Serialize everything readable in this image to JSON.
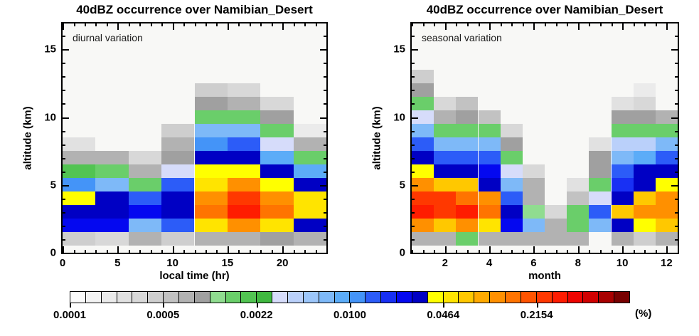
{
  "chart_data": {
    "type": "heatmap",
    "plot_background": "#f8f8f6",
    "palette": [
      "#fbfbfb",
      "#f3f3f3",
      "#ebebeb",
      "#e1e1e1",
      "#d8d8d8",
      "#cecece",
      "#c2c2c2",
      "#b2b2b2",
      "#a0a0a0",
      "#90dc90",
      "#6ace6a",
      "#52c452",
      "#40b840",
      "#d6dcfa",
      "#bad0fa",
      "#9cc6fa",
      "#7eb9f8",
      "#5cacf8",
      "#4494f8",
      "#2c5cf8",
      "#1830f4",
      "#0408f0",
      "#0000c4",
      "#ffff00",
      "#ffe400",
      "#ffc800",
      "#ffaa00",
      "#ff9000",
      "#ff7400",
      "#ff5400",
      "#ff3800",
      "#ff1c00",
      "#ee0400",
      "#d00000",
      "#a80000",
      "#780000"
    ],
    "plots": [
      {
        "title": "40dBZ occurrence over Namibian_Desert",
        "annotation": "diurnal variation",
        "xlabel": "local time (hr)",
        "ylabel": "altitude (km)",
        "x_range": [
          0,
          24
        ],
        "y_range": [
          0,
          16.9
        ],
        "x_major_ticks": [
          0,
          5,
          10,
          15,
          20
        ],
        "x_minor_step": 1,
        "y_major_ticks": [
          0,
          5,
          10,
          15
        ],
        "y_minor_step": 1,
        "col_edges": [
          0,
          3,
          6,
          9,
          12,
          15,
          18,
          21,
          24
        ],
        "row_center_start_km": 1,
        "row_height_km": 1,
        "grid_rows_bottom_up": [
          [
            5,
            4,
            7,
            5,
            7,
            7,
            8,
            7
          ],
          [
            21,
            21,
            16,
            19,
            24,
            27,
            24,
            22
          ],
          [
            22,
            22,
            21,
            22,
            28,
            31,
            28,
            24
          ],
          [
            23,
            22,
            19,
            22,
            27,
            30,
            27,
            24
          ],
          [
            18,
            16,
            10,
            19,
            24,
            27,
            23,
            22
          ],
          [
            11,
            10,
            7,
            13,
            23,
            23,
            22,
            17
          ],
          [
            7,
            7,
            4,
            8,
            22,
            22,
            17,
            10
          ],
          [
            3,
            null,
            null,
            7,
            18,
            19,
            13,
            7
          ],
          [
            null,
            null,
            null,
            5,
            16,
            16,
            10,
            2
          ],
          [
            null,
            null,
            null,
            null,
            10,
            10,
            8,
            null
          ],
          [
            null,
            null,
            null,
            null,
            8,
            7,
            4,
            null
          ],
          [
            null,
            null,
            null,
            null,
            5,
            4,
            null,
            null
          ]
        ]
      },
      {
        "title": "40dBZ occurrence over Namibian_Desert",
        "annotation": "seasonal variation",
        "xlabel": "month",
        "ylabel": "altitude (km)",
        "x_range": [
          0.5,
          12.5
        ],
        "y_range": [
          0,
          16.9
        ],
        "x_major_ticks": [
          2,
          4,
          6,
          8,
          10,
          12
        ],
        "x_minor_step": 0.5,
        "y_major_ticks": [
          0,
          5,
          10,
          15
        ],
        "y_minor_step": 1,
        "col_edges": [
          0.5,
          1.5,
          2.5,
          3.5,
          4.5,
          5.5,
          6.5,
          7.5,
          8.5,
          9.5,
          10.5,
          11.5,
          12.5
        ],
        "row_center_start_km": 1,
        "row_height_km": 1,
        "grid_rows_bottom_up": [
          [
            7,
            7,
            10,
            7,
            7,
            7,
            7,
            7,
            null,
            7,
            5,
            7
          ],
          [
            27,
            25,
            27,
            24,
            21,
            16,
            7,
            10,
            16,
            22,
            23,
            25
          ],
          [
            31,
            30,
            31,
            28,
            22,
            9,
            4,
            10,
            19,
            25,
            27,
            27
          ],
          [
            30,
            30,
            28,
            27,
            19,
            7,
            null,
            6,
            13,
            22,
            25,
            27
          ],
          [
            27,
            25,
            25,
            22,
            16,
            7,
            null,
            3,
            10,
            20,
            22,
            23
          ],
          [
            23,
            22,
            22,
            21,
            13,
            4,
            null,
            null,
            8,
            19,
            22,
            22
          ],
          [
            22,
            19,
            19,
            19,
            10,
            null,
            null,
            null,
            8,
            16,
            17,
            19
          ],
          [
            19,
            16,
            16,
            16,
            8,
            null,
            null,
            null,
            3,
            14,
            14,
            16
          ],
          [
            16,
            10,
            10,
            10,
            4,
            null,
            null,
            null,
            null,
            10,
            10,
            10
          ],
          [
            13,
            7,
            8,
            6,
            null,
            null,
            null,
            null,
            null,
            8,
            8,
            7
          ],
          [
            10,
            4,
            6,
            null,
            null,
            null,
            null,
            null,
            null,
            3,
            4,
            null
          ],
          [
            8,
            null,
            null,
            null,
            null,
            null,
            null,
            null,
            null,
            null,
            2,
            null
          ],
          [
            5,
            null,
            null,
            null,
            null,
            null,
            null,
            null,
            null,
            null,
            null,
            null
          ]
        ]
      }
    ],
    "colorbar": {
      "scale": "log",
      "range_percent": [
        0.0001,
        1.0
      ],
      "segments": 36,
      "tick_every_segments": 6,
      "tick_labels": [
        "0.0001",
        "0.0005",
        "0.0022",
        "0.0100",
        "0.0464",
        "0.2154"
      ],
      "unit": "(%)"
    }
  }
}
